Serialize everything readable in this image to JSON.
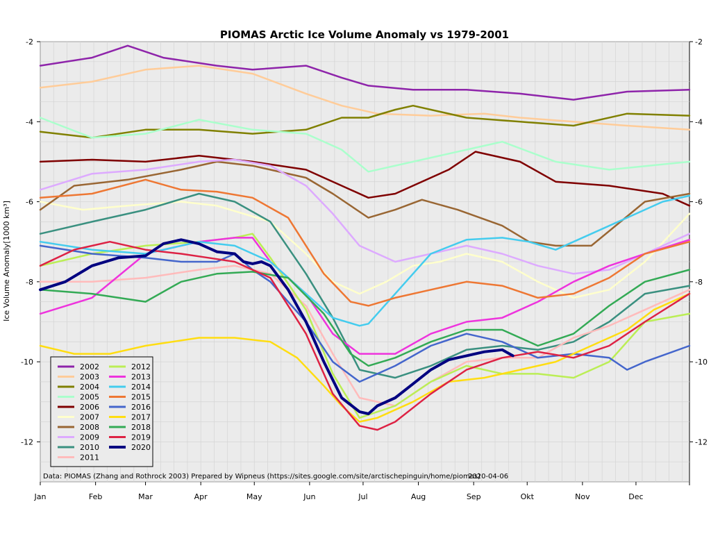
{
  "chart_data": {
    "type": "line",
    "title": "PIOMAS Arctic Ice Volume Anomaly vs 1979-2001",
    "ylabel": "Ice Volume Anomaly[1000 km³]",
    "xlabel": "",
    "ylim": [
      -13,
      -2
    ],
    "y_ticks": [
      -2,
      -4,
      -6,
      -8,
      -10,
      -12
    ],
    "y_tick_labels": [
      "-2",
      "-4",
      "-6",
      "-8",
      "-10",
      "-12"
    ],
    "x_ticks": [
      "Jan",
      "Feb",
      "Mar",
      "Apr",
      "May",
      "Jun",
      "Jul",
      "Aug",
      "Sep",
      "Okt",
      "Nov",
      "Dec"
    ],
    "xlim_days": [
      1,
      365
    ],
    "grid": true,
    "background": "#ebebeb",
    "legend_position": "bottom-left",
    "footnote": "Data: PIOMAS (Zhang and Rothrock 2003) Prepared by Wipneus (https://sites.google.com/site/arctischepinguin/home/piomas)",
    "date": "2020-04-06",
    "series": [
      {
        "name": "2002",
        "color": "#8e24aa",
        "x": [
          1,
          30,
          50,
          70,
          100,
          120,
          150,
          170,
          185,
          210,
          240,
          270,
          300,
          330,
          365
        ],
        "values": [
          -2.6,
          -2.4,
          -2.1,
          -2.4,
          -2.6,
          -2.7,
          -2.6,
          -2.9,
          -3.1,
          -3.2,
          -3.2,
          -3.3,
          -3.45,
          -3.25,
          -3.2
        ]
      },
      {
        "name": "2003",
        "color": "#ffcc99",
        "x": [
          1,
          30,
          60,
          90,
          120,
          150,
          170,
          190,
          220,
          250,
          270,
          300,
          330,
          365
        ],
        "values": [
          -3.15,
          -3.0,
          -2.7,
          -2.6,
          -2.8,
          -3.3,
          -3.6,
          -3.8,
          -3.85,
          -3.8,
          -3.9,
          -4.0,
          -4.1,
          -4.2
        ]
      },
      {
        "name": "2004",
        "color": "#808000",
        "x": [
          1,
          30,
          60,
          90,
          120,
          150,
          170,
          185,
          200,
          210,
          240,
          270,
          300,
          330,
          365
        ],
        "values": [
          -4.25,
          -4.4,
          -4.2,
          -4.2,
          -4.3,
          -4.2,
          -3.9,
          -3.9,
          -3.7,
          -3.6,
          -3.9,
          -4.0,
          -4.1,
          -3.8,
          -3.85
        ]
      },
      {
        "name": "2005",
        "color": "#aaffcc",
        "x": [
          1,
          30,
          60,
          90,
          120,
          150,
          170,
          185,
          210,
          240,
          260,
          290,
          320,
          365
        ],
        "values": [
          -3.9,
          -4.4,
          -4.3,
          -3.95,
          -4.2,
          -4.3,
          -4.7,
          -5.25,
          -5.0,
          -4.7,
          -4.5,
          -5.0,
          -5.2,
          -5.0
        ]
      },
      {
        "name": "2006",
        "color": "#7f0000",
        "x": [
          1,
          30,
          60,
          90,
          120,
          150,
          170,
          185,
          200,
          230,
          245,
          270,
          290,
          320,
          350,
          365
        ],
        "values": [
          -5.0,
          -4.95,
          -5.0,
          -4.85,
          -5.0,
          -5.2,
          -5.6,
          -5.9,
          -5.8,
          -5.2,
          -4.75,
          -5.0,
          -5.5,
          -5.6,
          -5.8,
          -6.1
        ]
      },
      {
        "name": "2007",
        "color": "#ffffcc",
        "x": [
          1,
          25,
          50,
          80,
          100,
          130,
          150,
          165,
          180,
          195,
          210,
          225,
          240,
          260,
          280,
          300,
          320,
          340,
          365
        ],
        "values": [
          -6.0,
          -6.2,
          -6.1,
          -6.0,
          -6.1,
          -6.5,
          -7.3,
          -8.0,
          -8.3,
          -8.0,
          -7.6,
          -7.5,
          -7.3,
          -7.5,
          -8.0,
          -8.4,
          -8.2,
          -7.5,
          -6.3
        ]
      },
      {
        "name": "2008",
        "color": "#996633",
        "x": [
          1,
          20,
          50,
          80,
          100,
          120,
          150,
          165,
          185,
          200,
          215,
          235,
          260,
          275,
          290,
          310,
          340,
          365
        ],
        "values": [
          -6.2,
          -5.6,
          -5.45,
          -5.2,
          -5.0,
          -5.1,
          -5.4,
          -5.8,
          -6.4,
          -6.2,
          -5.95,
          -6.2,
          -6.6,
          -7.0,
          -7.1,
          -7.1,
          -6.0,
          -5.8
        ]
      },
      {
        "name": "2009",
        "color": "#ddaaff",
        "x": [
          1,
          30,
          60,
          90,
          110,
          130,
          150,
          165,
          180,
          200,
          220,
          240,
          260,
          280,
          300,
          320,
          340,
          365
        ],
        "values": [
          -5.7,
          -5.3,
          -5.2,
          -5.0,
          -4.95,
          -5.1,
          -5.6,
          -6.3,
          -7.1,
          -7.5,
          -7.3,
          -7.1,
          -7.3,
          -7.6,
          -7.8,
          -7.7,
          -7.3,
          -6.8
        ]
      },
      {
        "name": "2010",
        "color": "#3a9080",
        "x": [
          1,
          30,
          60,
          75,
          90,
          110,
          130,
          150,
          165,
          180,
          200,
          220,
          240,
          260,
          280,
          300,
          320,
          340,
          365
        ],
        "values": [
          -6.8,
          -6.5,
          -6.2,
          -6.0,
          -5.8,
          -6.0,
          -6.5,
          -7.8,
          -8.9,
          -10.2,
          -10.4,
          -10.1,
          -9.7,
          -9.6,
          -9.7,
          -9.5,
          -9.0,
          -8.3,
          -8.1
        ]
      },
      {
        "name": "2011",
        "color": "#ffbbbb",
        "x": [
          1,
          30,
          60,
          90,
          110,
          130,
          150,
          165,
          180,
          200,
          220,
          240,
          260,
          280,
          300,
          320,
          340,
          365
        ],
        "values": [
          -8.0,
          -8.0,
          -7.9,
          -7.7,
          -7.6,
          -7.8,
          -8.6,
          -9.8,
          -10.9,
          -11.1,
          -10.5,
          -10.0,
          -9.9,
          -9.9,
          -9.4,
          -9.1,
          -8.7,
          -8.2
        ]
      },
      {
        "name": "2012",
        "color": "#bbee55",
        "x": [
          1,
          30,
          60,
          90,
          110,
          120,
          130,
          150,
          165,
          180,
          200,
          220,
          240,
          260,
          280,
          300,
          320,
          340,
          365
        ],
        "values": [
          -7.6,
          -7.3,
          -7.1,
          -7.0,
          -6.9,
          -6.8,
          -7.4,
          -8.7,
          -10.3,
          -11.4,
          -11.1,
          -10.5,
          -10.1,
          -10.3,
          -10.3,
          -10.4,
          -10.0,
          -9.0,
          -8.8
        ]
      },
      {
        "name": "2013",
        "color": "#ee33dd",
        "x": [
          1,
          30,
          60,
          90,
          110,
          120,
          130,
          150,
          165,
          180,
          200,
          220,
          240,
          260,
          280,
          300,
          320,
          340,
          365
        ],
        "values": [
          -8.8,
          -8.4,
          -7.3,
          -7.0,
          -6.9,
          -6.9,
          -7.5,
          -8.3,
          -9.3,
          -9.8,
          -9.8,
          -9.3,
          -9.0,
          -8.9,
          -8.5,
          -8.0,
          -7.6,
          -7.3,
          -6.95
        ]
      },
      {
        "name": "2014",
        "color": "#44ccee",
        "x": [
          1,
          30,
          60,
          90,
          110,
          130,
          150,
          165,
          180,
          185,
          200,
          220,
          240,
          260,
          275,
          290,
          310,
          330,
          350,
          365
        ],
        "values": [
          -7.0,
          -7.2,
          -7.3,
          -7.0,
          -7.1,
          -7.5,
          -8.3,
          -8.9,
          -9.1,
          -9.05,
          -8.3,
          -7.3,
          -6.95,
          -6.9,
          -7.0,
          -7.2,
          -6.8,
          -6.4,
          -6.0,
          -5.85
        ]
      },
      {
        "name": "2015",
        "color": "#ee7733",
        "x": [
          1,
          30,
          60,
          80,
          100,
          120,
          140,
          160,
          175,
          185,
          200,
          220,
          240,
          260,
          280,
          300,
          320,
          340,
          365
        ],
        "values": [
          -5.9,
          -5.8,
          -5.45,
          -5.7,
          -5.75,
          -5.9,
          -6.4,
          -7.8,
          -8.5,
          -8.6,
          -8.4,
          -8.2,
          -8.0,
          -8.1,
          -8.4,
          -8.3,
          -7.9,
          -7.3,
          -7.0
        ]
      },
      {
        "name": "2016",
        "color": "#4466cc",
        "x": [
          1,
          30,
          60,
          80,
          100,
          110,
          120,
          130,
          150,
          165,
          180,
          200,
          220,
          240,
          260,
          280,
          300,
          320,
          330,
          340,
          365
        ],
        "values": [
          -7.1,
          -7.3,
          -7.4,
          -7.5,
          -7.5,
          -7.3,
          -7.7,
          -8.0,
          -9.0,
          -10.0,
          -10.5,
          -10.1,
          -9.6,
          -9.3,
          -9.5,
          -9.9,
          -9.8,
          -9.9,
          -10.2,
          -10.0,
          -9.6
        ]
      },
      {
        "name": "2017",
        "color": "#ffdd11",
        "x": [
          1,
          20,
          40,
          60,
          90,
          110,
          130,
          145,
          160,
          170,
          180,
          190,
          210,
          230,
          250,
          270,
          290,
          310,
          330,
          345,
          365
        ],
        "values": [
          -9.6,
          -9.8,
          -9.8,
          -9.6,
          -9.4,
          -9.4,
          -9.5,
          -9.9,
          -10.6,
          -11.1,
          -11.5,
          -11.4,
          -11.0,
          -10.5,
          -10.4,
          -10.2,
          -10.0,
          -9.6,
          -9.2,
          -8.7,
          -8.3
        ]
      },
      {
        "name": "2018",
        "color": "#33aa55",
        "x": [
          1,
          30,
          60,
          80,
          100,
          120,
          140,
          160,
          175,
          185,
          200,
          220,
          240,
          260,
          280,
          300,
          320,
          340,
          365
        ],
        "values": [
          -8.2,
          -8.3,
          -8.5,
          -8.0,
          -7.8,
          -7.75,
          -7.9,
          -8.8,
          -9.8,
          -10.1,
          -9.9,
          -9.5,
          -9.2,
          -9.2,
          -9.6,
          -9.3,
          -8.6,
          -8.0,
          -7.7
        ]
      },
      {
        "name": "2019",
        "color": "#dd2244",
        "x": [
          1,
          20,
          40,
          60,
          80,
          95,
          110,
          130,
          150,
          165,
          180,
          190,
          200,
          220,
          240,
          260,
          280,
          300,
          320,
          340,
          365
        ],
        "values": [
          -7.6,
          -7.2,
          -7.0,
          -7.2,
          -7.3,
          -7.4,
          -7.5,
          -7.9,
          -9.3,
          -10.8,
          -11.6,
          -11.7,
          -11.5,
          -10.8,
          -10.2,
          -9.9,
          -9.75,
          -9.9,
          -9.6,
          -9.0,
          -8.3
        ]
      },
      {
        "name": "2020",
        "color": "#000080",
        "x": [
          1,
          15,
          30,
          45,
          60,
          70,
          80,
          90,
          100,
          110,
          115,
          120,
          125,
          130,
          140,
          150,
          160,
          170,
          180,
          185,
          190,
          200,
          210,
          220,
          230,
          240,
          250,
          260,
          266
        ],
        "values": [
          -8.2,
          -8.0,
          -7.6,
          -7.4,
          -7.35,
          -7.05,
          -6.95,
          -7.05,
          -7.25,
          -7.3,
          -7.5,
          -7.55,
          -7.5,
          -7.6,
          -8.2,
          -9.0,
          -10.0,
          -10.9,
          -11.25,
          -11.3,
          -11.1,
          -10.9,
          -10.55,
          -10.2,
          -9.95,
          -9.85,
          -9.75,
          -9.7,
          -9.85
        ]
      }
    ]
  }
}
